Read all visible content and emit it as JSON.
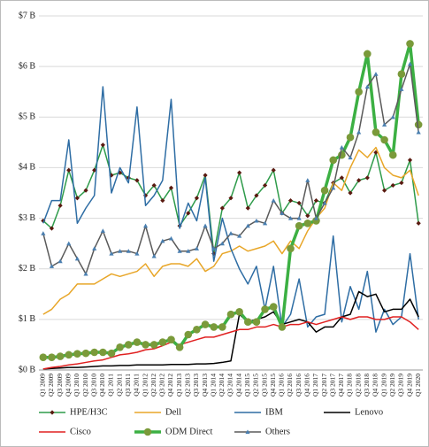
{
  "chart_data": {
    "type": "line",
    "categories": [
      "Q1 2009",
      "Q2 2009",
      "Q3 2009",
      "Q4 2009",
      "Q1 2010",
      "Q2 2010",
      "Q3 2010",
      "Q4 2010",
      "Q1 2011",
      "Q2 2011",
      "Q3 2011",
      "Q4 2011",
      "Q1 2012",
      "Q2 2012",
      "Q3 2012",
      "Q4 2012",
      "Q1 2013",
      "Q2 2013",
      "Q3 2013",
      "Q4 2013",
      "Q1 2014",
      "Q2 2014",
      "Q3 2014",
      "Q4 2014",
      "Q1 2015",
      "Q2 2015",
      "Q3 2015",
      "Q4 2015",
      "Q1 2016",
      "Q2 2016",
      "Q3 2016",
      "Q4 2016",
      "Q1 2017",
      "Q2 2017",
      "Q3 2017",
      "Q4 2017",
      "Q1 2018",
      "Q2 2018",
      "Q3 2018",
      "Q4 2018",
      "Q1 2019",
      "Q2 2019",
      "Q3 2019",
      "Q4 2019",
      "Q1 2020"
    ],
    "series": [
      {
        "name": "HPE/H3C",
        "color": "#2e9b4a",
        "marker": "diamond",
        "marker_color": "#5a1a10",
        "line_width": 1.5,
        "values": [
          2.95,
          2.8,
          3.25,
          3.95,
          3.4,
          3.55,
          3.95,
          4.45,
          3.85,
          3.9,
          3.8,
          3.75,
          3.45,
          3.65,
          3.35,
          3.6,
          2.85,
          3.1,
          3.4,
          3.85,
          2.3,
          3.2,
          3.4,
          3.9,
          3.2,
          3.45,
          3.65,
          3.95,
          3.1,
          3.35,
          3.3,
          3.05,
          3.35,
          3.3,
          3.7,
          3.8,
          3.5,
          3.75,
          3.8,
          4.3,
          3.55,
          3.65,
          3.7,
          4.15,
          2.9
        ]
      },
      {
        "name": "Dell",
        "color": "#e8a628",
        "line_width": 1.5,
        "values": [
          1.1,
          1.2,
          1.4,
          1.5,
          1.7,
          1.7,
          1.7,
          1.8,
          1.9,
          1.85,
          1.9,
          1.95,
          2.1,
          1.85,
          2.05,
          2.1,
          2.1,
          2.05,
          2.2,
          1.95,
          2.05,
          2.3,
          2.35,
          2.45,
          2.35,
          2.4,
          2.45,
          2.55,
          2.3,
          2.55,
          2.4,
          2.75,
          3.0,
          3.2,
          3.7,
          3.55,
          4.0,
          4.35,
          4.2,
          4.4,
          4.0,
          3.85,
          3.8,
          3.95,
          3.45
        ]
      },
      {
        "name": "IBM",
        "color": "#2e6da4",
        "line_width": 1.5,
        "values": [
          2.9,
          3.35,
          3.35,
          4.55,
          2.9,
          3.2,
          3.45,
          5.6,
          3.5,
          4.0,
          3.7,
          5.2,
          3.25,
          3.45,
          3.75,
          5.35,
          2.8,
          3.3,
          2.95,
          3.8,
          2.15,
          3.0,
          2.4,
          2.0,
          1.7,
          2.05,
          1.2,
          2.05,
          0.85,
          1.1,
          1.8,
          0.85,
          1.05,
          1.1,
          2.65,
          0.95,
          1.65,
          1.2,
          1.95,
          0.75,
          1.2,
          0.9,
          1.05,
          2.3,
          1.0
        ]
      },
      {
        "name": "Lenovo",
        "color": "#000000",
        "line_width": 1.5,
        "values": [
          0.02,
          0.03,
          0.04,
          0.05,
          0.05,
          0.06,
          0.07,
          0.08,
          0.08,
          0.09,
          0.09,
          0.1,
          0.1,
          0.1,
          0.1,
          0.11,
          0.11,
          0.11,
          0.12,
          0.12,
          0.13,
          0.15,
          0.18,
          1.1,
          0.95,
          1.0,
          1.05,
          1.15,
          0.9,
          0.95,
          1.0,
          0.95,
          0.75,
          0.85,
          0.85,
          1.05,
          1.1,
          1.55,
          1.45,
          1.5,
          1.15,
          1.2,
          1.2,
          1.4,
          1.05
        ]
      },
      {
        "name": "Cisco",
        "color": "#e02020",
        "line_width": 1.5,
        "values": [
          0.02,
          0.05,
          0.07,
          0.1,
          0.12,
          0.15,
          0.18,
          0.2,
          0.25,
          0.3,
          0.32,
          0.35,
          0.4,
          0.42,
          0.48,
          0.55,
          0.5,
          0.55,
          0.6,
          0.65,
          0.65,
          0.7,
          0.75,
          0.8,
          0.8,
          0.85,
          0.85,
          0.9,
          0.85,
          0.9,
          0.9,
          0.95,
          0.9,
          0.95,
          1.0,
          1.05,
          1.0,
          1.05,
          1.05,
          1.0,
          1.0,
          1.05,
          1.05,
          0.95,
          0.8
        ]
      },
      {
        "name": "ODM Direct",
        "color": "#3cb043",
        "marker": "circle",
        "marker_color": "#7a9a3a",
        "line_width": 3.5,
        "values": [
          0.25,
          0.25,
          0.27,
          0.3,
          0.32,
          0.33,
          0.35,
          0.35,
          0.33,
          0.45,
          0.5,
          0.55,
          0.5,
          0.5,
          0.55,
          0.6,
          0.45,
          0.7,
          0.8,
          0.9,
          0.85,
          0.85,
          1.1,
          1.15,
          0.95,
          0.95,
          1.2,
          1.25,
          0.85,
          2.4,
          2.85,
          2.9,
          2.95,
          3.55,
          4.15,
          4.25,
          4.6,
          5.5,
          6.25,
          4.7,
          4.55,
          4.25,
          5.85,
          6.45,
          4.85
        ]
      },
      {
        "name": "Others",
        "color": "#5a5a5a",
        "marker": "triangle",
        "marker_color": "#4a7fb0",
        "line_width": 1.5,
        "values": [
          2.7,
          2.05,
          2.15,
          2.5,
          2.2,
          1.9,
          2.4,
          2.75,
          2.3,
          2.35,
          2.35,
          2.3,
          2.85,
          2.25,
          2.55,
          2.6,
          2.35,
          2.35,
          2.4,
          2.85,
          2.4,
          2.5,
          2.7,
          2.65,
          2.85,
          2.95,
          2.9,
          3.35,
          3.1,
          3.0,
          3.0,
          3.75,
          3.0,
          3.3,
          3.6,
          4.4,
          4.2,
          4.7,
          5.6,
          5.85,
          4.85,
          5.0,
          5.55,
          6.05,
          4.7
        ]
      }
    ],
    "ylim": [
      0,
      7
    ],
    "yticks": [
      {
        "value": 0,
        "label": "$0 B"
      },
      {
        "value": 1,
        "label": "$1 B"
      },
      {
        "value": 2,
        "label": "$2 B"
      },
      {
        "value": 3,
        "label": "$3 B"
      },
      {
        "value": 4,
        "label": "$4 B"
      },
      {
        "value": 5,
        "label": "$5 B"
      },
      {
        "value": 6,
        "label": "$6 B"
      },
      {
        "value": 7,
        "label": "$7 B"
      }
    ],
    "grid": true,
    "legend": "bottom"
  }
}
